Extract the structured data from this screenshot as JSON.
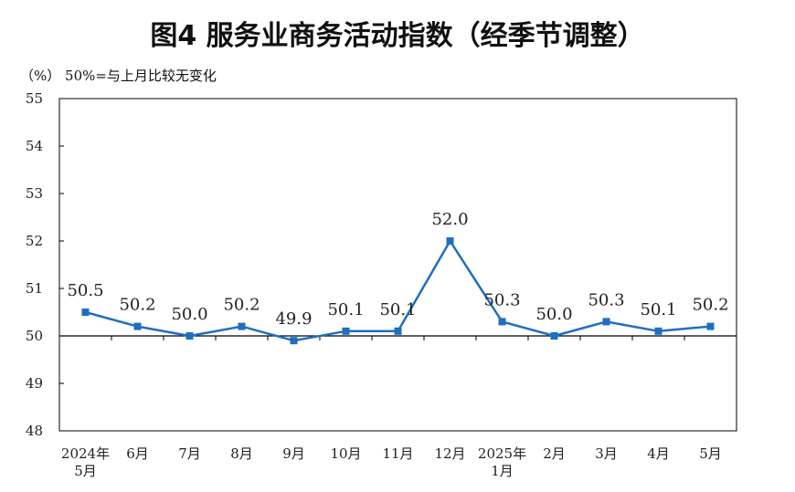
{
  "title": "图4 服务业商务活动指数（经季节调整）",
  "unit_note": "（%） 50%=与上月比较无变化",
  "chart_data": {
    "type": "line",
    "title": "图4 服务业商务活动指数（经季节调整）",
    "xlabel": "",
    "ylabel": "（%）",
    "ylim": [
      48,
      55
    ],
    "yticks": [
      48,
      49,
      50,
      51,
      52,
      53,
      54,
      55
    ],
    "reference_line": 50,
    "grid": false,
    "categories": [
      [
        "2024年",
        "5月"
      ],
      [
        "6月"
      ],
      [
        "7月"
      ],
      [
        "8月"
      ],
      [
        "9月"
      ],
      [
        "10月"
      ],
      [
        "11月"
      ],
      [
        "12月"
      ],
      [
        "2025年",
        "1月"
      ],
      [
        "2月"
      ],
      [
        "3月"
      ],
      [
        "4月"
      ],
      [
        "5月"
      ]
    ],
    "series": [
      {
        "values": [
          50.5,
          50.2,
          50.0,
          50.2,
          49.9,
          50.1,
          50.1,
          52.0,
          50.3,
          50.0,
          50.3,
          50.1,
          50.2
        ],
        "labels": [
          "50.5",
          "50.2",
          "50.0",
          "50.2",
          "49.9",
          "50.1",
          "50.1",
          "52.0",
          "50.3",
          "50.0",
          "50.3",
          "50.1",
          "50.2"
        ],
        "color": "#1f6fbf"
      }
    ]
  }
}
